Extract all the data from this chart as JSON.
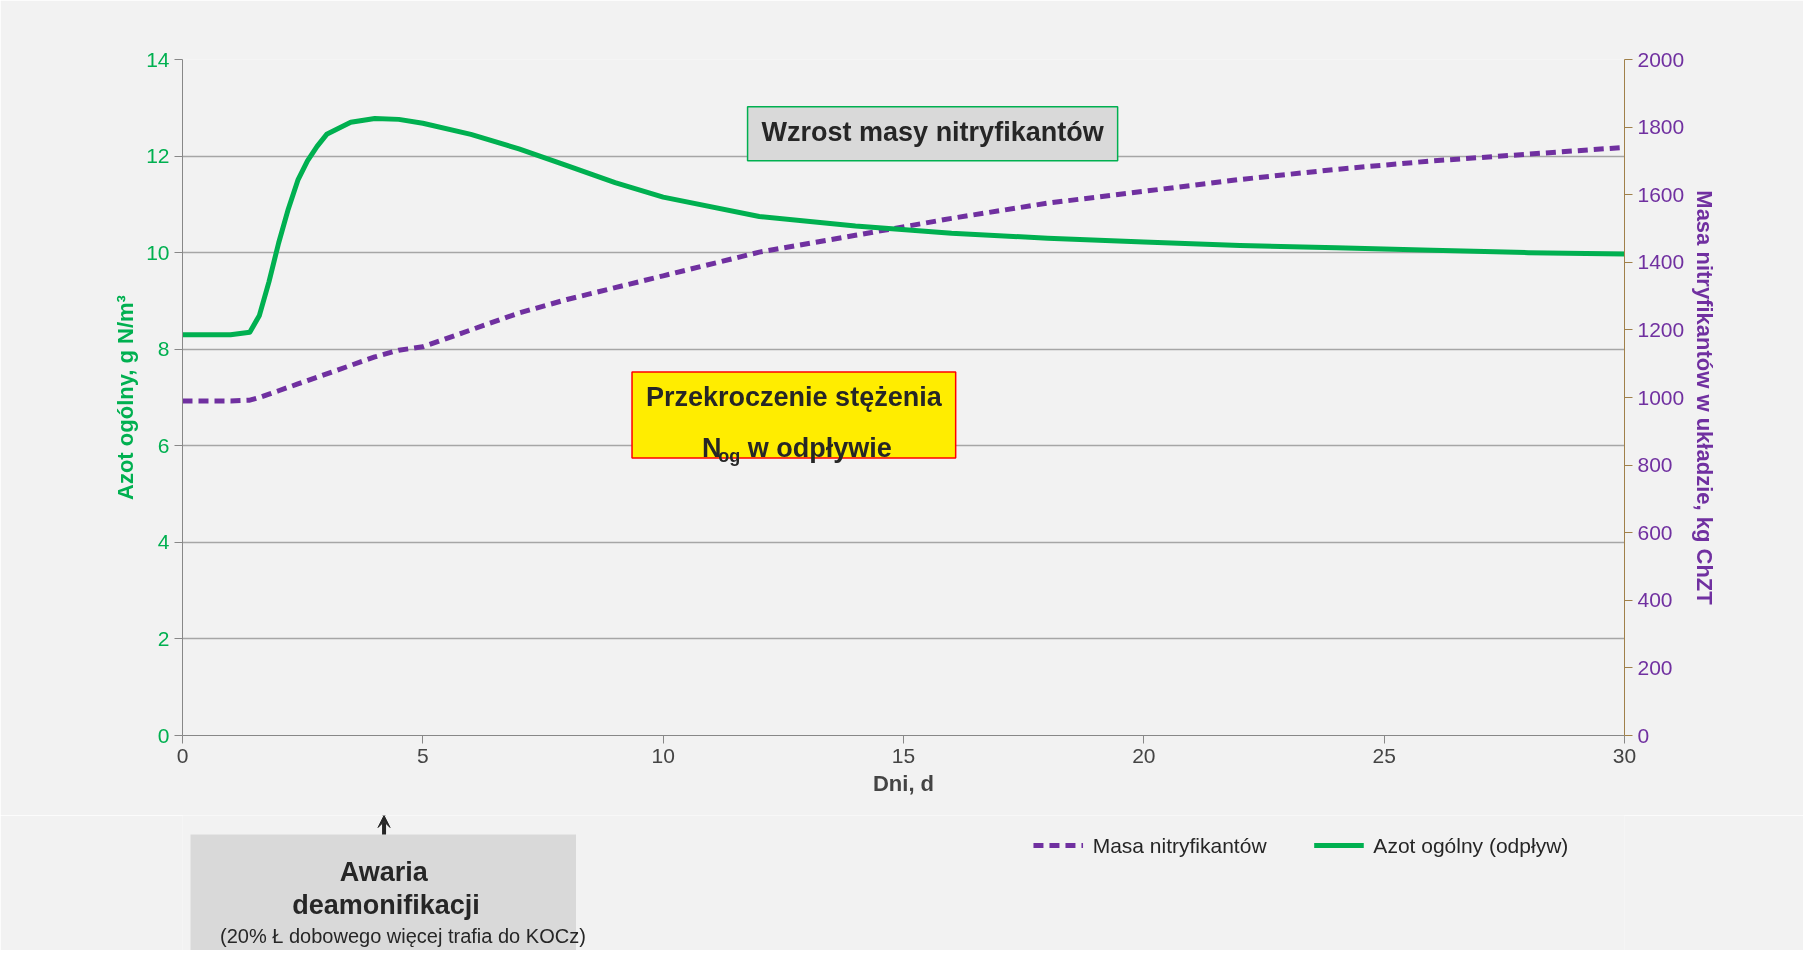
{
  "chart_data": {
    "type": "line",
    "xlabel": "Dni, d",
    "ylabel": "Azot ogólny, g N/m³",
    "y2label": "Masa nitryfikantów w układzie, kg ChZT",
    "x": [
      0,
      0.5,
      1,
      1.4,
      1.6,
      1.8,
      2,
      2.2,
      2.4,
      2.6,
      2.8,
      3,
      3.5,
      4,
      4.5,
      5,
      6,
      7,
      8,
      9,
      10,
      12,
      14,
      16,
      18,
      20,
      22,
      24,
      26,
      28,
      30
    ],
    "series": [
      {
        "name": "Masa nitryfikantów",
        "color": "#7030a0",
        "axis": "y2",
        "line_style": "dashed",
        "values": [
          990,
          990,
          990,
          992,
          1000,
          1010,
          1020,
          1030,
          1040,
          1050,
          1060,
          1070,
          1095,
          1120,
          1140,
          1150,
          1200,
          1250,
          1290,
          1325,
          1360,
          1430,
          1480,
          1530,
          1575,
          1610,
          1645,
          1675,
          1700,
          1720,
          1740
        ]
      },
      {
        "name": "Azot ogólny (odpływ)",
        "color": "#00b050",
        "line_style": "solid",
        "values": [
          8.3,
          8.3,
          8.3,
          8.35,
          8.7,
          9.4,
          10.2,
          10.9,
          11.5,
          11.9,
          12.2,
          12.45,
          12.7,
          12.78,
          12.76,
          12.68,
          12.45,
          12.15,
          11.8,
          11.45,
          11.15,
          10.75,
          10.55,
          10.4,
          10.3,
          10.22,
          10.15,
          10.1,
          10.05,
          10.0,
          9.97
        ]
      }
    ],
    "xlim": [
      0,
      30
    ],
    "xticks": [
      0,
      5,
      10,
      15,
      20,
      25,
      30
    ],
    "ylim": [
      0,
      14
    ],
    "yticks": [
      0,
      2,
      4,
      6,
      8,
      10,
      12,
      14
    ],
    "y2lim": [
      0,
      2000
    ],
    "y2ticks": [
      0,
      200,
      400,
      600,
      800,
      1000,
      1200,
      1400,
      1600,
      1800,
      2000
    ],
    "grid": "y",
    "legend": "bottom right",
    "annotations": [
      "Wzrost masy nitryfikantów",
      "Przekroczenie stężenia\nN$_{og}$ w odpływie",
      "Awaria\ndeamonifikacji",
      "(20% Ł dobowego więcej trafia do KOCz)"
    ]
  }
}
